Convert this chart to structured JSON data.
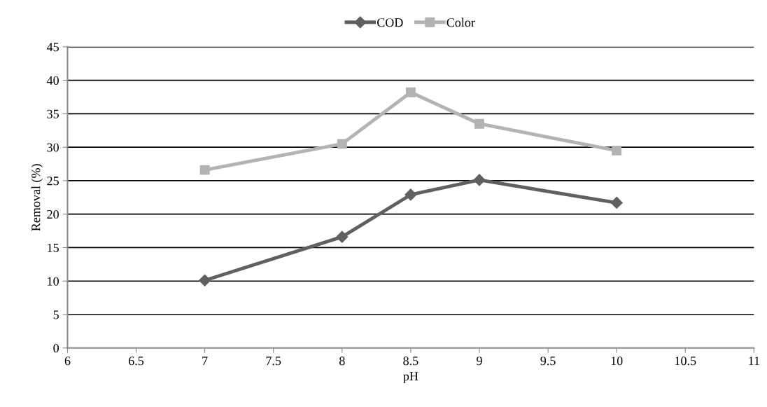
{
  "chart_data": {
    "type": "line",
    "xlabel": "pH",
    "ylabel": "Removal (%)",
    "x": [
      7,
      8,
      8.5,
      9,
      10
    ],
    "series": [
      {
        "name": "COD",
        "color": "#606060",
        "marker": "diamond",
        "values": [
          10.1,
          16.6,
          22.9,
          25.1,
          21.7
        ]
      },
      {
        "name": "Color",
        "color": "#b3b3b3",
        "marker": "square",
        "values": [
          26.6,
          30.5,
          38.2,
          33.5,
          29.5
        ]
      }
    ],
    "xlim": [
      6,
      11
    ],
    "xticks": [
      6,
      6.5,
      7,
      7.5,
      8,
      8.5,
      9,
      9.5,
      10,
      10.5,
      11
    ],
    "ylim": [
      0,
      45
    ],
    "yticks": [
      0,
      5,
      10,
      15,
      20,
      25,
      30,
      35,
      40,
      45
    ],
    "grid": "y",
    "legend": "top",
    "line_style": "solid"
  }
}
